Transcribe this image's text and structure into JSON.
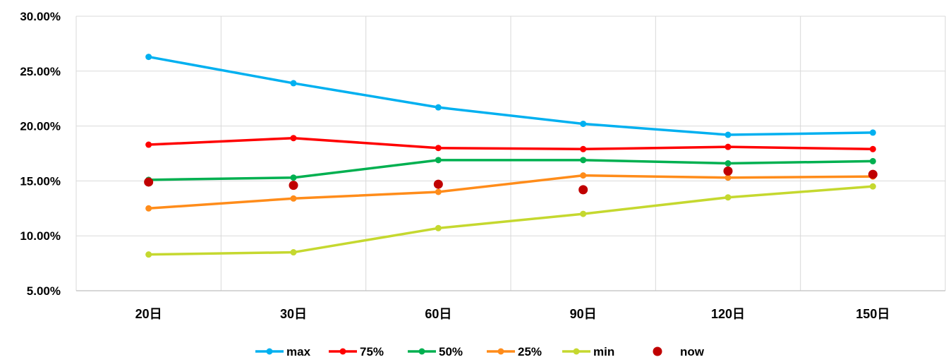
{
  "chart_data": {
    "type": "line",
    "title": "",
    "xlabel": "",
    "ylabel": "",
    "categories": [
      "20日",
      "30日",
      "60日",
      "90日",
      "120日",
      "150日"
    ],
    "ylim": [
      5,
      30
    ],
    "yticks": [
      5,
      10,
      15,
      20,
      25,
      30
    ],
    "ytick_labels": [
      "5.00%",
      "10.00%",
      "15.00%",
      "20.00%",
      "25.00%",
      "30.00%"
    ],
    "grid": true,
    "legend_position": "bottom",
    "series": [
      {
        "name": "max",
        "style": "line",
        "color": "#00b0f0",
        "values": [
          26.3,
          23.9,
          21.7,
          20.2,
          19.2,
          19.4
        ]
      },
      {
        "name": "75%",
        "style": "line",
        "color": "#ff0000",
        "values": [
          18.3,
          18.9,
          18.0,
          17.9,
          18.1,
          17.9
        ]
      },
      {
        "name": "50%",
        "style": "line",
        "color": "#00b050",
        "values": [
          15.1,
          15.3,
          16.9,
          16.9,
          16.6,
          16.8
        ]
      },
      {
        "name": "25%",
        "style": "line",
        "color": "#ff8c1a",
        "values": [
          12.5,
          13.4,
          14.0,
          15.5,
          15.3,
          15.4
        ]
      },
      {
        "name": "min",
        "style": "line",
        "color": "#c5d82f",
        "values": [
          8.3,
          8.5,
          10.7,
          12.0,
          13.5,
          14.5
        ]
      },
      {
        "name": "now",
        "style": "marker",
        "color": "#c00000",
        "values": [
          14.9,
          14.6,
          14.7,
          14.2,
          15.9,
          15.6
        ]
      }
    ]
  }
}
